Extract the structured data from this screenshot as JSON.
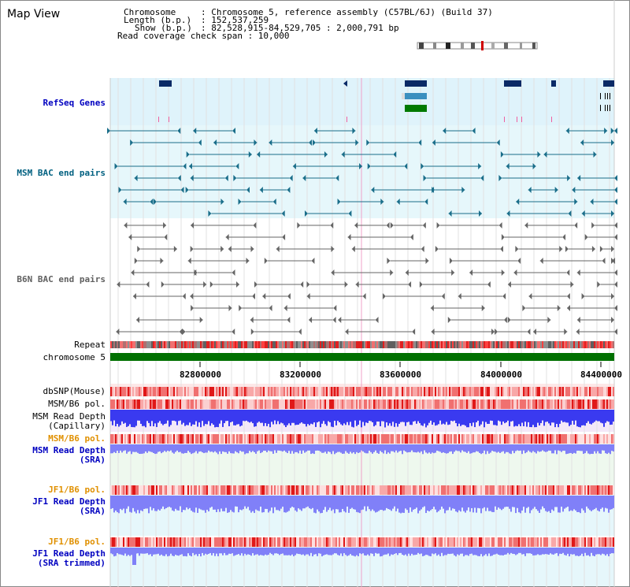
{
  "header": {
    "title": "Map View",
    "chrom_label": "Chromosome",
    "chrom_value": ": Chromosome 5, reference assembly (C57BL/6J) (Build 37)",
    "length_label": "Length (b.p.)",
    "length_value": ": 152,537,259",
    "show_label": "Show (b.p.)",
    "show_value": ": 82,528,915-84,529,705 : 2,000,791 bp",
    "coverage_text": "Read coverage check span : 10,000"
  },
  "tracks": {
    "refseq": "RefSeq Genes",
    "msm_bac": "MSM BAC end pairs",
    "b6n_bac": "B6N BAC end pairs",
    "repeat": "Repeat",
    "chromosome": "chromosome 5",
    "dbsnp": "dbSNP(Mouse)",
    "msm_b6_pol_1": "MSM/B6 pol.",
    "msm_depth_cap_1": "MSM Read Depth",
    "msm_depth_cap_2": "(Capillary)",
    "msm_b6_pol_2": "MSM/B6 pol.",
    "msm_depth_sra_1": "MSM Read Depth",
    "msm_depth_sra_2": "(SRA)",
    "jf1_pol_1": "JF1/B6 pol.",
    "jf1_depth_1": "JF1 Read Depth",
    "jf1_depth_2": "(SRA)",
    "jf1_pol_2": "JF1/B6 pol.",
    "jf1_trim_1": "JF1 Read Depth",
    "jf1_trim_2": "(SRA trimmed)"
  },
  "axis": {
    "ticks": [
      "82800000",
      "83200000",
      "83600000",
      "84000000",
      "84400000"
    ]
  },
  "colors": {
    "label_blue": "#0000c0",
    "label_teal": "#006080",
    "label_orange": "#e09000",
    "refseq_bg": "#dff3fb",
    "msm_bg": "#e6f7fb",
    "gene_navy": "#0a2a66",
    "gene_blue": "#3a8fbf",
    "gene_green": "#007a00",
    "chrom_green": "#007000",
    "depth_blue": "#3a3af0",
    "depth_light": "#8080f8"
  }
}
